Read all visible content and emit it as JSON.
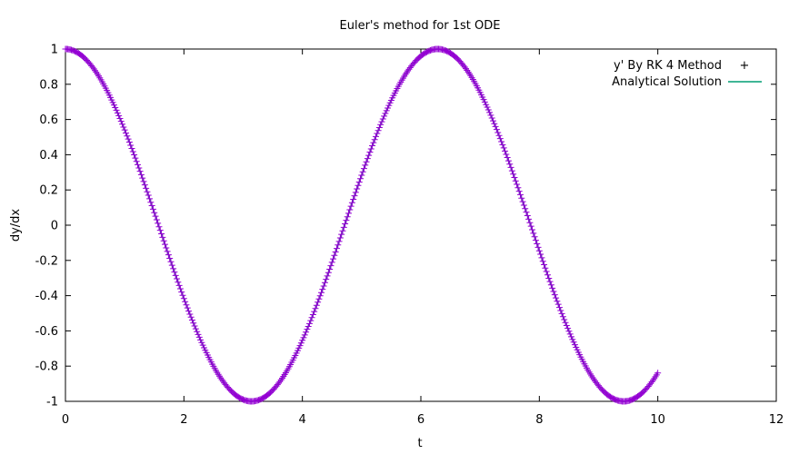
{
  "chart_data": {
    "type": "scatter",
    "title": "Euler's method for 1st ODE",
    "xlabel": "t",
    "ylabel": "dy/dx",
    "xlim": [
      0,
      12
    ],
    "ylim": [
      -1,
      1
    ],
    "x_ticks": [
      "0",
      "2",
      "4",
      "6",
      "8",
      "10",
      "12"
    ],
    "y_ticks": [
      "1",
      "0.8",
      "0.6",
      "0.4",
      "0.2",
      "0",
      "-0.2",
      "-0.4",
      "-0.6",
      "-0.8",
      "-1"
    ],
    "grid": false,
    "legend_position": "top-right",
    "series": [
      {
        "name": "y' By RK 4 Method",
        "style": "points",
        "marker": "+",
        "color": "#9400d3",
        "function": "cos(t)",
        "x_range": [
          0,
          10
        ],
        "step": 0.02
      },
      {
        "name": "Analytical Solution",
        "style": "line",
        "color": "#009e73",
        "function": "cos(t)",
        "x_range": [
          0,
          10
        ]
      }
    ]
  }
}
